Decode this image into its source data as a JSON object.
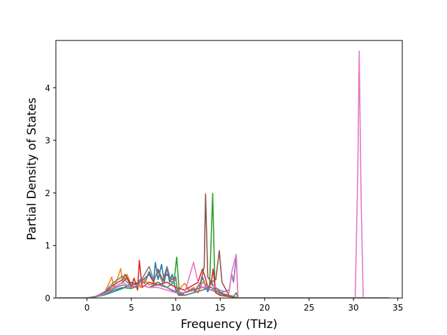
{
  "chart_data": {
    "type": "line",
    "xlabel": "Frequency (THz)",
    "ylabel": "Partial Density of States",
    "xlim": [
      -3.5,
      35.5
    ],
    "ylim": [
      0,
      4.9
    ],
    "xticks": [
      0,
      5,
      10,
      15,
      20,
      25,
      30,
      35
    ],
    "yticks": [
      0,
      1,
      2,
      3,
      4
    ],
    "grid": false,
    "legend": "none",
    "series": [
      {
        "color": "#1f77b4",
        "points": [
          [
            -3.3,
            0
          ],
          [
            0,
            0
          ],
          [
            1,
            0.02
          ],
          [
            2,
            0.06
          ],
          [
            3,
            0.12
          ],
          [
            4,
            0.18
          ],
          [
            4.5,
            0.22
          ],
          [
            5,
            0.3
          ],
          [
            5.5,
            0.25
          ],
          [
            6,
            0.35
          ],
          [
            6.5,
            0.28
          ],
          [
            7,
            0.5
          ],
          [
            7.5,
            0.3
          ],
          [
            7.7,
            0.68
          ],
          [
            8,
            0.35
          ],
          [
            8.4,
            0.64
          ],
          [
            8.7,
            0.3
          ],
          [
            9,
            0.58
          ],
          [
            9.3,
            0.3
          ],
          [
            9.6,
            0.45
          ],
          [
            10,
            0.15
          ],
          [
            10.5,
            0.05
          ],
          [
            11,
            0.1
          ],
          [
            12,
            0.18
          ],
          [
            12.5,
            0.1
          ],
          [
            13,
            0.4
          ],
          [
            13.3,
            0.25
          ],
          [
            13.6,
            0.12
          ],
          [
            14,
            0.3
          ],
          [
            14.5,
            0.15
          ],
          [
            15,
            0.08
          ],
          [
            16,
            0.05
          ],
          [
            16.5,
            0.03
          ],
          [
            17,
            0
          ],
          [
            34,
            0
          ]
        ]
      },
      {
        "color": "#ff7f0e",
        "points": [
          [
            -3.3,
            0
          ],
          [
            0,
            0
          ],
          [
            1,
            0.03
          ],
          [
            2,
            0.1
          ],
          [
            2.8,
            0.4
          ],
          [
            3,
            0.2
          ],
          [
            3.5,
            0.4
          ],
          [
            3.8,
            0.56
          ],
          [
            4,
            0.28
          ],
          [
            4.5,
            0.45
          ],
          [
            5,
            0.25
          ],
          [
            5.5,
            0.3
          ],
          [
            6,
            0.2
          ],
          [
            6.5,
            0.35
          ],
          [
            7,
            0.25
          ],
          [
            8,
            0.3
          ],
          [
            9,
            0.2
          ],
          [
            10,
            0.1
          ],
          [
            11,
            0.28
          ],
          [
            11.5,
            0.15
          ],
          [
            12,
            0.2
          ],
          [
            12.5,
            0.1
          ],
          [
            13,
            0.3
          ],
          [
            14,
            0.2
          ],
          [
            14.5,
            0.1
          ],
          [
            15,
            0.05
          ],
          [
            17,
            0
          ],
          [
            34,
            0
          ]
        ]
      },
      {
        "color": "#2ca02c",
        "points": [
          [
            -3.3,
            0
          ],
          [
            0,
            0
          ],
          [
            1,
            0.02
          ],
          [
            2,
            0.08
          ],
          [
            3,
            0.15
          ],
          [
            4,
            0.2
          ],
          [
            5,
            0.18
          ],
          [
            6,
            0.25
          ],
          [
            7,
            0.2
          ],
          [
            8,
            0.3
          ],
          [
            9,
            0.2
          ],
          [
            9.8,
            0.3
          ],
          [
            10.1,
            0.78
          ],
          [
            10.4,
            0.1
          ],
          [
            11,
            0.05
          ],
          [
            12,
            0.1
          ],
          [
            13,
            0.15
          ],
          [
            13.8,
            0.2
          ],
          [
            14.15,
            1.99
          ],
          [
            14.4,
            0.2
          ],
          [
            14.8,
            0.15
          ],
          [
            15.5,
            0.05
          ],
          [
            16.5,
            0.03
          ],
          [
            16.8,
            0.1
          ],
          [
            17,
            0
          ],
          [
            34,
            0
          ]
        ]
      },
      {
        "color": "#d62728",
        "points": [
          [
            -3.3,
            0
          ],
          [
            0,
            0
          ],
          [
            1,
            0.03
          ],
          [
            2,
            0.1
          ],
          [
            3,
            0.2
          ],
          [
            4,
            0.3
          ],
          [
            4.5,
            0.38
          ],
          [
            5,
            0.2
          ],
          [
            5.3,
            0.38
          ],
          [
            5.7,
            0.15
          ],
          [
            5.9,
            0.72
          ],
          [
            6.2,
            0.2
          ],
          [
            7,
            0.3
          ],
          [
            8,
            0.25
          ],
          [
            9,
            0.3
          ],
          [
            10,
            0.2
          ],
          [
            11,
            0.15
          ],
          [
            12,
            0.25
          ],
          [
            12.5,
            0.3
          ],
          [
            13,
            0.55
          ],
          [
            13.3,
            0.4
          ],
          [
            13.6,
            0.2
          ],
          [
            14,
            0.3
          ],
          [
            14.2,
            0.55
          ],
          [
            14.5,
            0.1
          ],
          [
            15,
            0.05
          ],
          [
            16,
            0.03
          ],
          [
            17,
            0
          ],
          [
            34,
            0
          ]
        ]
      },
      {
        "color": "#9467bd",
        "points": [
          [
            -3.3,
            0
          ],
          [
            0,
            0
          ],
          [
            1,
            0.02
          ],
          [
            2,
            0.08
          ],
          [
            3,
            0.18
          ],
          [
            4,
            0.25
          ],
          [
            5,
            0.2
          ],
          [
            6,
            0.25
          ],
          [
            7,
            0.2
          ],
          [
            8,
            0.25
          ],
          [
            9,
            0.2
          ],
          [
            10,
            0.12
          ],
          [
            11,
            0.1
          ],
          [
            12,
            0.15
          ],
          [
            13,
            0.2
          ],
          [
            14,
            0.15
          ],
          [
            15,
            0.1
          ],
          [
            16,
            0.15
          ],
          [
            16.3,
            0.45
          ],
          [
            16.5,
            0.3
          ],
          [
            16.8,
            0.8
          ],
          [
            17,
            0
          ],
          [
            34,
            0
          ]
        ]
      },
      {
        "color": "#8c564b",
        "points": [
          [
            -3.3,
            0
          ],
          [
            0,
            0
          ],
          [
            1,
            0.02
          ],
          [
            2,
            0.1
          ],
          [
            3,
            0.25
          ],
          [
            4,
            0.35
          ],
          [
            4.3,
            0.45
          ],
          [
            5,
            0.25
          ],
          [
            6,
            0.3
          ],
          [
            7,
            0.45
          ],
          [
            7.5,
            0.3
          ],
          [
            8,
            0.55
          ],
          [
            8.5,
            0.35
          ],
          [
            9,
            0.45
          ],
          [
            9.5,
            0.35
          ],
          [
            10,
            0.4
          ],
          [
            10.2,
            0.08
          ],
          [
            11,
            0.05
          ],
          [
            12,
            0.1
          ],
          [
            12.8,
            0.3
          ],
          [
            13.2,
            0.6
          ],
          [
            13.35,
            1.98
          ],
          [
            13.6,
            0.4
          ],
          [
            14,
            0.3
          ],
          [
            14.5,
            0.35
          ],
          [
            14.9,
            0.9
          ],
          [
            15.2,
            0.3
          ],
          [
            16,
            0.05
          ],
          [
            17,
            0
          ],
          [
            34,
            0
          ]
        ]
      },
      {
        "color": "#e377c2",
        "points": [
          [
            -3.3,
            0
          ],
          [
            0,
            0
          ],
          [
            1,
            0.02
          ],
          [
            2,
            0.08
          ],
          [
            3,
            0.2
          ],
          [
            4,
            0.3
          ],
          [
            5,
            0.2
          ],
          [
            6,
            0.25
          ],
          [
            7,
            0.2
          ],
          [
            8,
            0.2
          ],
          [
            9,
            0.15
          ],
          [
            10,
            0.1
          ],
          [
            11,
            0.1
          ],
          [
            12,
            0.68
          ],
          [
            12.5,
            0.3
          ],
          [
            13,
            0.2
          ],
          [
            14,
            0.25
          ],
          [
            15,
            0.15
          ],
          [
            16,
            0.1
          ],
          [
            16.3,
            0.5
          ],
          [
            16.8,
            0.83
          ],
          [
            17,
            0
          ],
          [
            30.2,
            0
          ],
          [
            30.5,
            2.5
          ],
          [
            30.65,
            4.7
          ],
          [
            30.85,
            2.0
          ],
          [
            31.1,
            0
          ],
          [
            34,
            0
          ]
        ]
      },
      {
        "color": "#7f7f7f",
        "points": [
          [
            -3.3,
            0
          ],
          [
            0,
            0
          ],
          [
            1,
            0.03
          ],
          [
            2,
            0.12
          ],
          [
            3,
            0.3
          ],
          [
            3.5,
            0.35
          ],
          [
            4,
            0.42
          ],
          [
            4.5,
            0.3
          ],
          [
            5,
            0.25
          ],
          [
            5.5,
            0.2
          ],
          [
            6,
            0.3
          ],
          [
            7,
            0.6
          ],
          [
            7.5,
            0.35
          ],
          [
            8,
            0.5
          ],
          [
            8.5,
            0.3
          ],
          [
            9,
            0.6
          ],
          [
            9.5,
            0.3
          ],
          [
            10,
            0.35
          ],
          [
            10.3,
            0.05
          ],
          [
            11,
            0.05
          ],
          [
            12,
            0.1
          ],
          [
            13,
            0.15
          ],
          [
            14,
            0.2
          ],
          [
            14.5,
            0.15
          ],
          [
            15,
            0.1
          ],
          [
            16,
            0.05
          ],
          [
            17,
            0
          ],
          [
            34,
            0
          ]
        ]
      }
    ]
  }
}
